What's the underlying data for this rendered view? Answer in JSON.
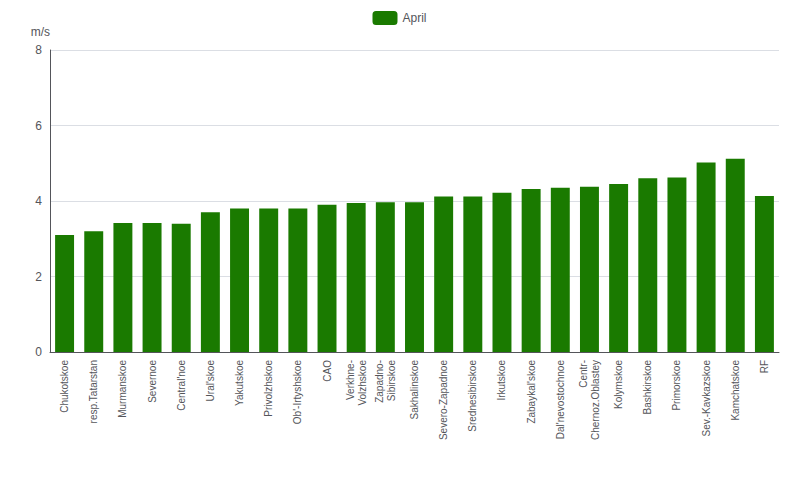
{
  "chart_data": {
    "type": "bar",
    "categories": [
      "Chukotskoe",
      "resp.Tatarstan",
      "Murmanskoe",
      "Severnoe",
      "Central'noe",
      "Ural'skoe",
      "Yakutskoe",
      "Privolzhskoe",
      "Ob'-Irtyshskoe",
      "CAO",
      "Verkhne-\nVolzhskoe",
      "Zapadno-\nSibirskoe",
      "Sakhalinskoe",
      "Severo-Zapadnoe",
      "Srednesibirskoe",
      "Irkutskoe",
      "Zabaykal'skoe",
      "Dal'nevostochnoe",
      "Centr-\nChernoz.Oblastey",
      "Kolymskoe",
      "Bashkirskoe",
      "Primorskoe",
      "Sev.-Kavkazskoe",
      "Kamchatskoe",
      "RF"
    ],
    "series": [
      {
        "name": "April",
        "color": "#1a7a00",
        "values": [
          3.1,
          3.2,
          3.42,
          3.42,
          3.4,
          3.7,
          3.8,
          3.8,
          3.8,
          3.9,
          3.95,
          3.97,
          3.97,
          4.12,
          4.12,
          4.22,
          4.32,
          4.35,
          4.38,
          4.45,
          4.6,
          4.62,
          5.02,
          5.12,
          4.13
        ]
      }
    ],
    "ylabel": "m/s",
    "ylim": [
      0,
      8
    ],
    "yticks": [
      0,
      2,
      4,
      6,
      8
    ],
    "grid": true,
    "legend": "top"
  }
}
